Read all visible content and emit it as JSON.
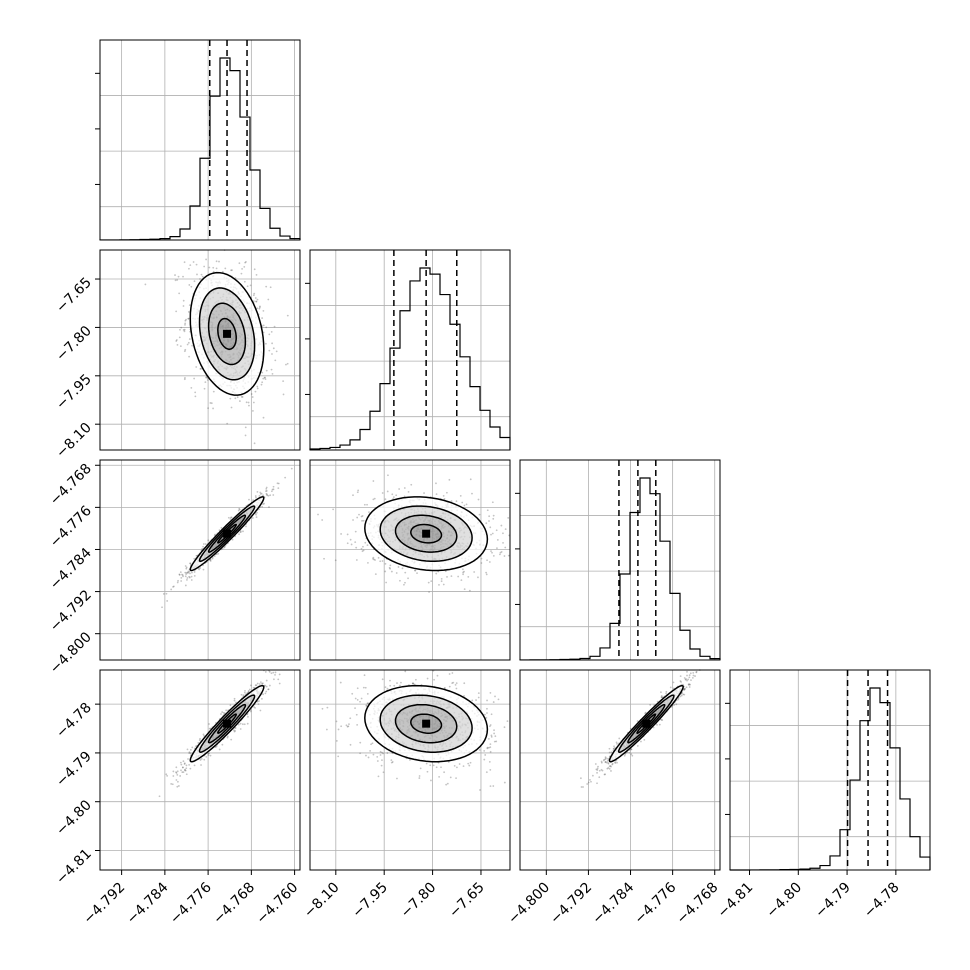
{
  "chart_data": {
    "type": "corner",
    "grid": true,
    "colors": {
      "axes": "#000000",
      "grid": "#b0b0b0",
      "hist": "#000000",
      "points": "#555555",
      "density": "#000000"
    },
    "params": [
      {
        "range": [
          -4.796,
          -4.759
        ],
        "ticks": [
          -4.792,
          -4.784,
          -4.776,
          -4.768,
          -4.76
        ],
        "tick_labels": [
          "−4.792",
          "−4.784",
          "−4.776",
          "−4.768",
          "−4.760"
        ],
        "quantiles": [
          -4.7757,
          -4.7725,
          -4.7688
        ],
        "mode": -4.7725,
        "sigma": 0.0034
      },
      {
        "range": [
          -8.18,
          -7.56
        ],
        "ticks": [
          -8.1,
          -7.95,
          -7.8,
          -7.65
        ],
        "tick_labels": [
          "−8.10",
          "−7.95",
          "−7.80",
          "−7.65"
        ],
        "quantiles": [
          -7.92,
          -7.82,
          -7.725
        ],
        "mode": -7.82,
        "sigma": 0.095
      },
      {
        "range": [
          -4.805,
          -4.767
        ],
        "ticks": [
          -4.8,
          -4.792,
          -4.784,
          -4.776,
          -4.768
        ],
        "tick_labels": [
          "−4.800",
          "−4.792",
          "−4.784",
          "−4.776",
          "−4.768"
        ],
        "quantiles": [
          -4.7862,
          -4.7826,
          -4.7792
        ],
        "mode": -4.781,
        "sigma": 0.0035
      },
      {
        "range": [
          -4.814,
          -4.773
        ],
        "ticks": [
          -4.81,
          -4.8,
          -4.79,
          -4.78
        ],
        "tick_labels": [
          "−4.81",
          "−4.80",
          "−4.79",
          "−4.78"
        ],
        "quantiles": [
          -4.7899,
          -4.7857,
          -4.7817
        ],
        "mode": -4.784,
        "sigma": 0.0039
      }
    ],
    "correlations": [
      [
        1.0,
        -0.25,
        0.97,
        0.96
      ],
      [
        -0.25,
        1.0,
        -0.15,
        -0.15
      ],
      [
        0.97,
        -0.15,
        1.0,
        0.97
      ],
      [
        0.96,
        -0.15,
        0.97,
        1.0
      ]
    ]
  }
}
